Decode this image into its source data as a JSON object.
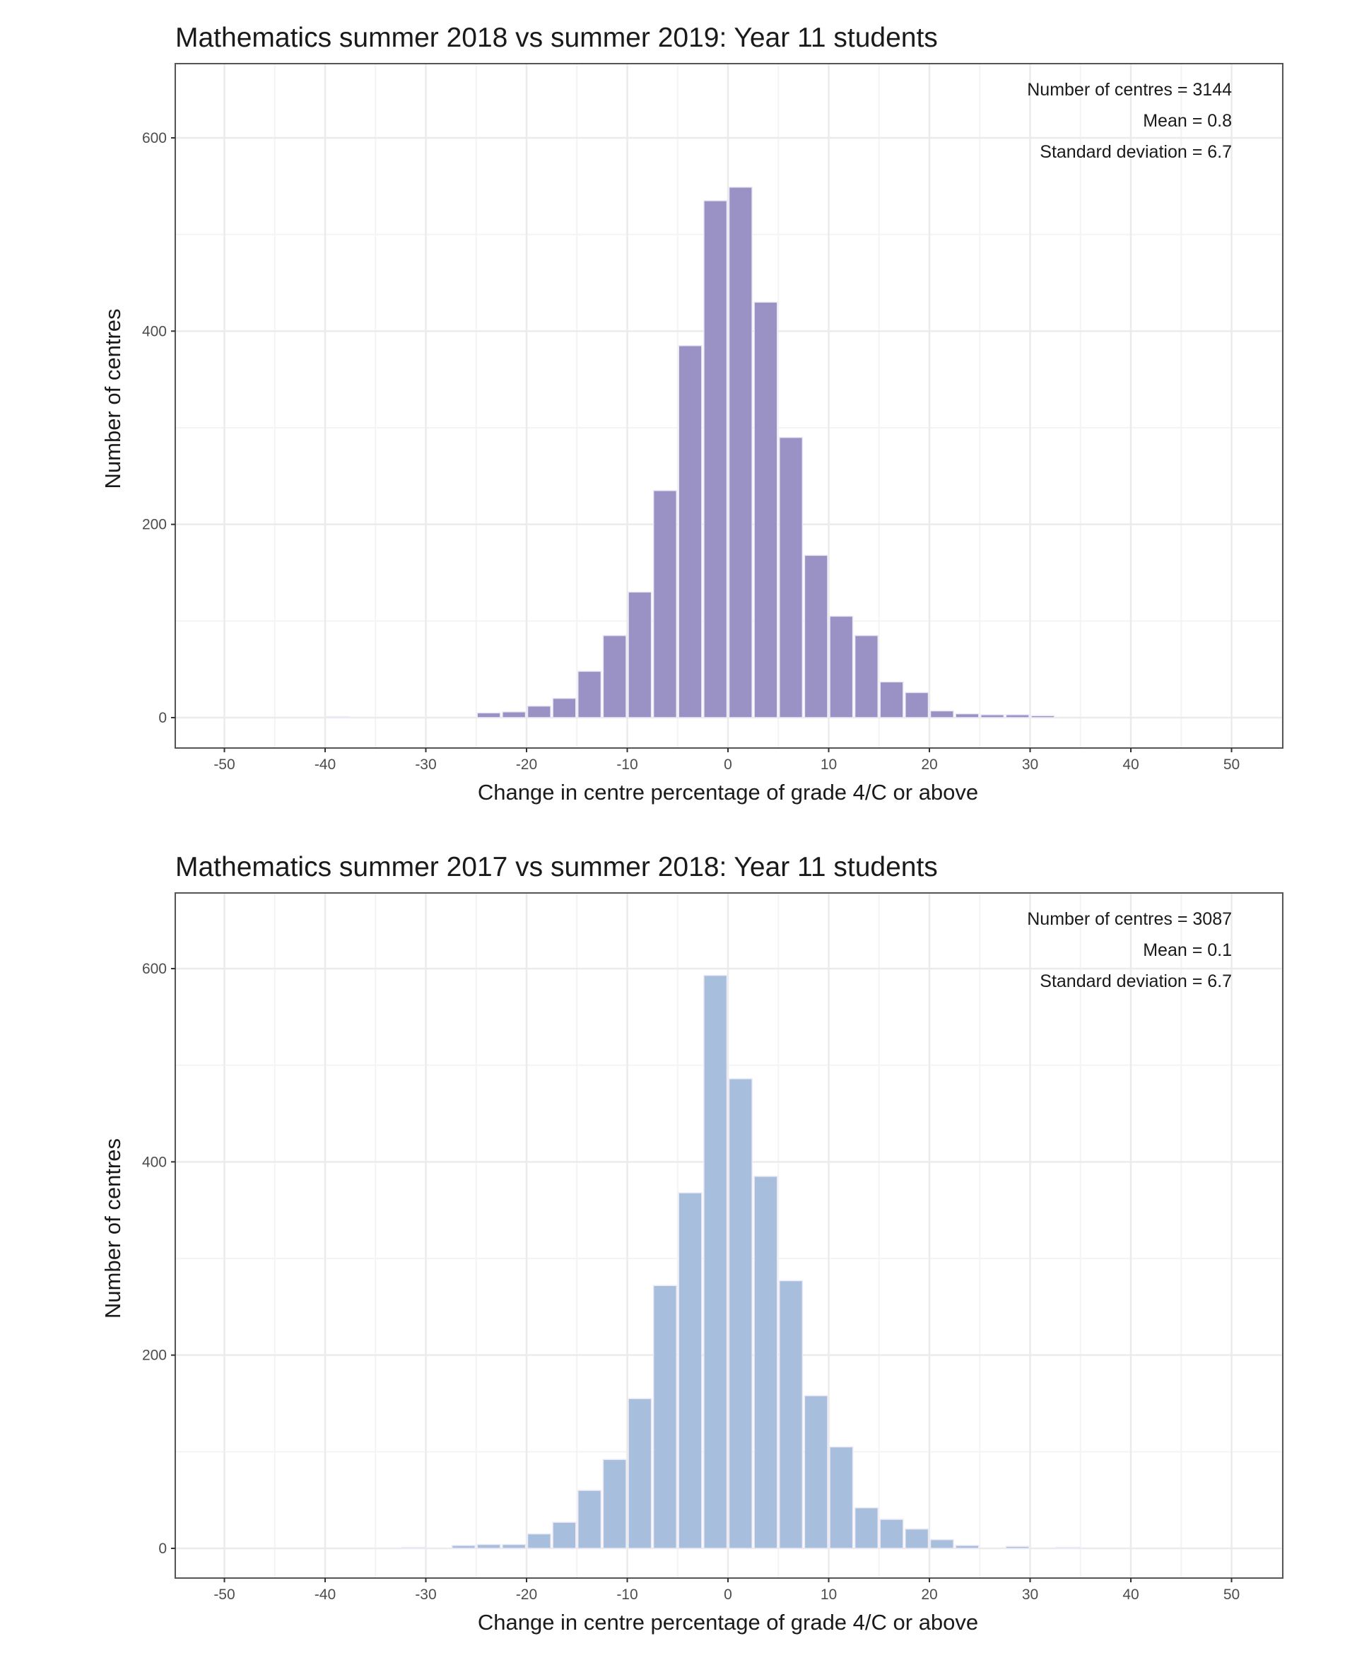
{
  "chart_data": [
    {
      "type": "bar",
      "subtype": "histogram",
      "title": "Mathematics summer 2018 vs summer 2019: Year 11 students",
      "xlabel": "Change in centre percentage of grade 4/C or above",
      "ylabel": "Number of centres",
      "xlim": [
        -55,
        55
      ],
      "ylim": [
        0,
        660
      ],
      "xticks": [
        -50,
        -40,
        -30,
        -20,
        -10,
        0,
        10,
        20,
        30,
        40,
        50
      ],
      "yticks": [
        0,
        200,
        400,
        600
      ],
      "grid": true,
      "bin_width": 2.5,
      "color": "#9a91c5",
      "annotations": [
        "Number of centres = 3144",
        "Mean = 0.8",
        "Standard deviation = 6.7"
      ],
      "bins": [
        {
          "start": -40,
          "count": 1
        },
        {
          "start": -25,
          "count": 5
        },
        {
          "start": -22.5,
          "count": 6
        },
        {
          "start": -20,
          "count": 12
        },
        {
          "start": -17.5,
          "count": 20
        },
        {
          "start": -15,
          "count": 48
        },
        {
          "start": -12.5,
          "count": 85
        },
        {
          "start": -10,
          "count": 130
        },
        {
          "start": -7.5,
          "count": 235
        },
        {
          "start": -5,
          "count": 385
        },
        {
          "start": -2.5,
          "count": 535
        },
        {
          "start": 0,
          "count": 549
        },
        {
          "start": 2.5,
          "count": 430
        },
        {
          "start": 5,
          "count": 290
        },
        {
          "start": 7.5,
          "count": 168
        },
        {
          "start": 10,
          "count": 105
        },
        {
          "start": 12.5,
          "count": 85
        },
        {
          "start": 15,
          "count": 37
        },
        {
          "start": 17.5,
          "count": 26
        },
        {
          "start": 20,
          "count": 7
        },
        {
          "start": 22.5,
          "count": 4
        },
        {
          "start": 25,
          "count": 3
        },
        {
          "start": 27.5,
          "count": 3
        },
        {
          "start": 30,
          "count": 2
        }
      ]
    },
    {
      "type": "bar",
      "subtype": "histogram",
      "title": "Mathematics summer 2017 vs summer 2018: Year 11 students",
      "xlabel": "Change in centre percentage of grade 4/C or above",
      "ylabel": "Number of centres",
      "xlim": [
        -55,
        55
      ],
      "ylim": [
        0,
        660
      ],
      "xticks": [
        -50,
        -40,
        -30,
        -20,
        -10,
        0,
        10,
        20,
        30,
        40,
        50
      ],
      "yticks": [
        0,
        200,
        400,
        600
      ],
      "grid": true,
      "bin_width": 2.5,
      "color": "#a7bedd",
      "annotations": [
        "Number of centres = 3087",
        "Mean = 0.1",
        "Standard deviation = 6.7"
      ],
      "bins": [
        {
          "start": -32.5,
          "count": 1
        },
        {
          "start": -27.5,
          "count": 3
        },
        {
          "start": -25,
          "count": 4
        },
        {
          "start": -22.5,
          "count": 4
        },
        {
          "start": -20,
          "count": 15
        },
        {
          "start": -17.5,
          "count": 27
        },
        {
          "start": -15,
          "count": 60
        },
        {
          "start": -12.5,
          "count": 92
        },
        {
          "start": -10,
          "count": 155
        },
        {
          "start": -7.5,
          "count": 272
        },
        {
          "start": -5,
          "count": 368
        },
        {
          "start": -2.5,
          "count": 593
        },
        {
          "start": 0,
          "count": 486
        },
        {
          "start": 2.5,
          "count": 385
        },
        {
          "start": 5,
          "count": 277
        },
        {
          "start": 7.5,
          "count": 158
        },
        {
          "start": 10,
          "count": 105
        },
        {
          "start": 12.5,
          "count": 42
        },
        {
          "start": 15,
          "count": 30
        },
        {
          "start": 17.5,
          "count": 20
        },
        {
          "start": 20,
          "count": 9
        },
        {
          "start": 22.5,
          "count": 3
        },
        {
          "start": 27.5,
          "count": 2
        },
        {
          "start": 32.5,
          "count": 1
        }
      ]
    }
  ]
}
